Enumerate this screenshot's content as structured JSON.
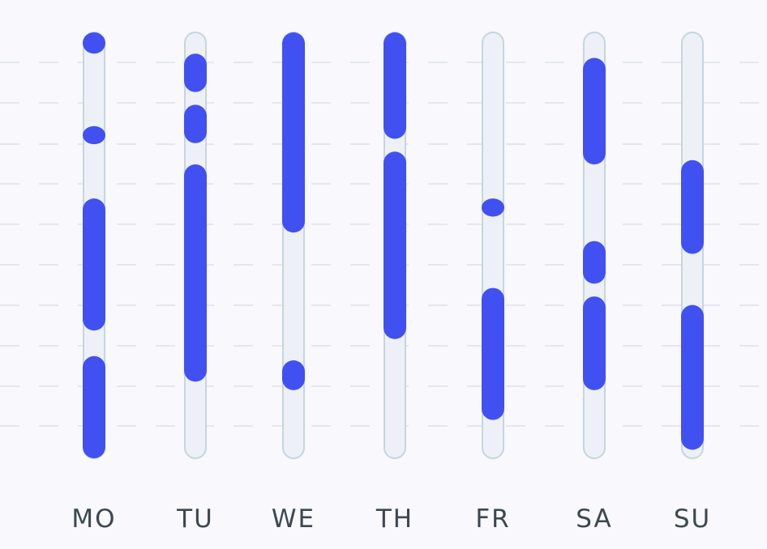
{
  "chart_data": {
    "type": "bar",
    "subtype": "range-timeline",
    "title": "",
    "xlabel": "",
    "ylabel": "",
    "ylim": [
      0,
      1
    ],
    "grid": true,
    "categories": [
      "MO",
      "TU",
      "WE",
      "TH",
      "FR",
      "SA",
      "SU"
    ],
    "ranges": [
      [
        [
          0.0,
          0.05
        ],
        [
          0.22,
          0.26
        ],
        [
          0.39,
          0.7
        ],
        [
          0.76,
          1.0
        ]
      ],
      [
        [
          0.05,
          0.14
        ],
        [
          0.17,
          0.26
        ],
        [
          0.31,
          0.82
        ]
      ],
      [
        [
          0.0,
          0.47
        ],
        [
          0.77,
          0.84
        ]
      ],
      [
        [
          0.0,
          0.25
        ],
        [
          0.28,
          0.72
        ]
      ],
      [
        [
          0.39,
          0.43
        ],
        [
          0.6,
          0.91
        ]
      ],
      [
        [
          0.06,
          0.31
        ],
        [
          0.49,
          0.59
        ],
        [
          0.62,
          0.84
        ]
      ],
      [
        [
          0.3,
          0.52
        ],
        [
          0.64,
          0.98
        ]
      ]
    ],
    "colors": {
      "bar": "#4150f0",
      "track_fill": "#edf1f7",
      "track_stroke": "#c5d5e0",
      "grid": "#e4e7ee",
      "label": "#3b4850",
      "background": "#f8f8fd"
    }
  }
}
